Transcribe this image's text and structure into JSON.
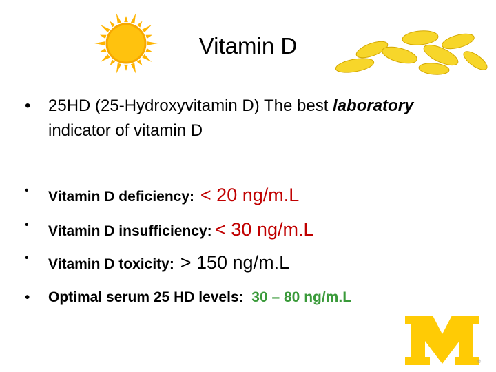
{
  "title": "Vitamin D",
  "intro": {
    "before": "25HD (25-Hydroxyvitamin D) The best",
    "emphasis": "laboratory",
    "after": "indicator of vitamin D"
  },
  "items": [
    {
      "label": "Vitamin D deficiency:",
      "value": "< 20 ng/m.L"
    },
    {
      "label": "Vitamin D insufficiency:",
      "value": "< 30 ng/m.L"
    },
    {
      "label": "Vitamin D toxicity:",
      "value": "> 150 ng/m.L"
    },
    {
      "label": "Optimal serum 25 HD levels:",
      "value": "30 – 80 ng/m.L"
    }
  ],
  "logo_mark": "®"
}
